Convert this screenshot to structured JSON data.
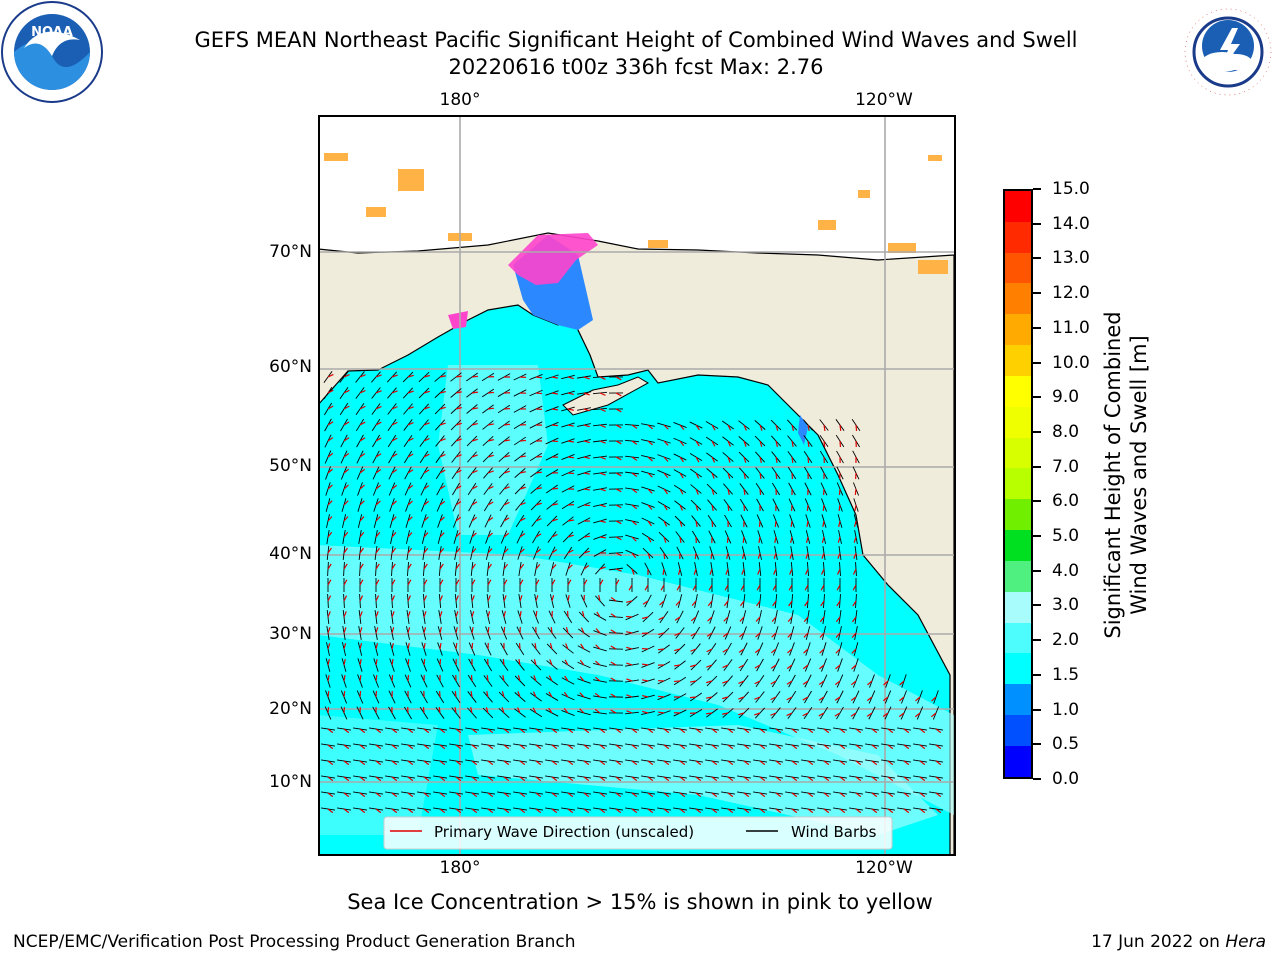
{
  "title": {
    "line1": "GEFS MEAN Northeast Pacific Significant Height of Combined Wind Waves and Swell",
    "line2": "20220616 t00z 336h fcst   Max: 2.76"
  },
  "logos": {
    "left": {
      "text": "NOAA",
      "icon": "noaa-logo-icon"
    },
    "right": {
      "text": "NATIONAL WEATHER SERVICE",
      "icon": "nws-logo-icon"
    }
  },
  "map": {
    "lon_labels_top": [
      "180°",
      "120°W"
    ],
    "lon_labels_bottom": [
      "180°",
      "120°W"
    ],
    "lat_labels": [
      "70°N",
      "60°N",
      "50°N",
      "40°N",
      "30°N",
      "20°N",
      "10°N"
    ],
    "legend": {
      "wave": "Primary Wave Direction (unscaled)",
      "barb": "Wind Barbs",
      "wave_color": "#e00000",
      "barb_color": "#000000"
    },
    "colors": {
      "land": "#efecdc",
      "ocean_low": "#00ffff",
      "ocean_mid": "#4dfcfc",
      "ocean_high": "#a8fcfc"
    }
  },
  "colorbar": {
    "title_line1": "Significant Height of Combined",
    "title_line2": "Wind Waves and Swell [m]",
    "ticks": [
      "15.0",
      "14.0",
      "13.0",
      "12.0",
      "11.0",
      "10.0",
      "9.0",
      "8.0",
      "7.0",
      "6.0",
      "5.0",
      "4.0",
      "3.0",
      "2.0",
      "1.5",
      "1.0",
      "0.5",
      "0.0"
    ],
    "colors": [
      "#ff0000",
      "#ff2a00",
      "#ff5500",
      "#ff8000",
      "#ffaa00",
      "#ffd000",
      "#ffff00",
      "#f0ff00",
      "#d8ff00",
      "#b8ff00",
      "#70f000",
      "#00e020",
      "#50f080",
      "#a8fcfc",
      "#4dfcfc",
      "#00ffff",
      "#0090ff",
      "#0050ff",
      "#0000ff"
    ]
  },
  "caption": "Sea Ice Concentration > 15% is shown in pink to yellow",
  "footer": {
    "left": "NCEP/EMC/Verification Post Processing Product Generation Branch",
    "right_prefix": "17 Jun 2022 on ",
    "right_host": "Hera"
  }
}
